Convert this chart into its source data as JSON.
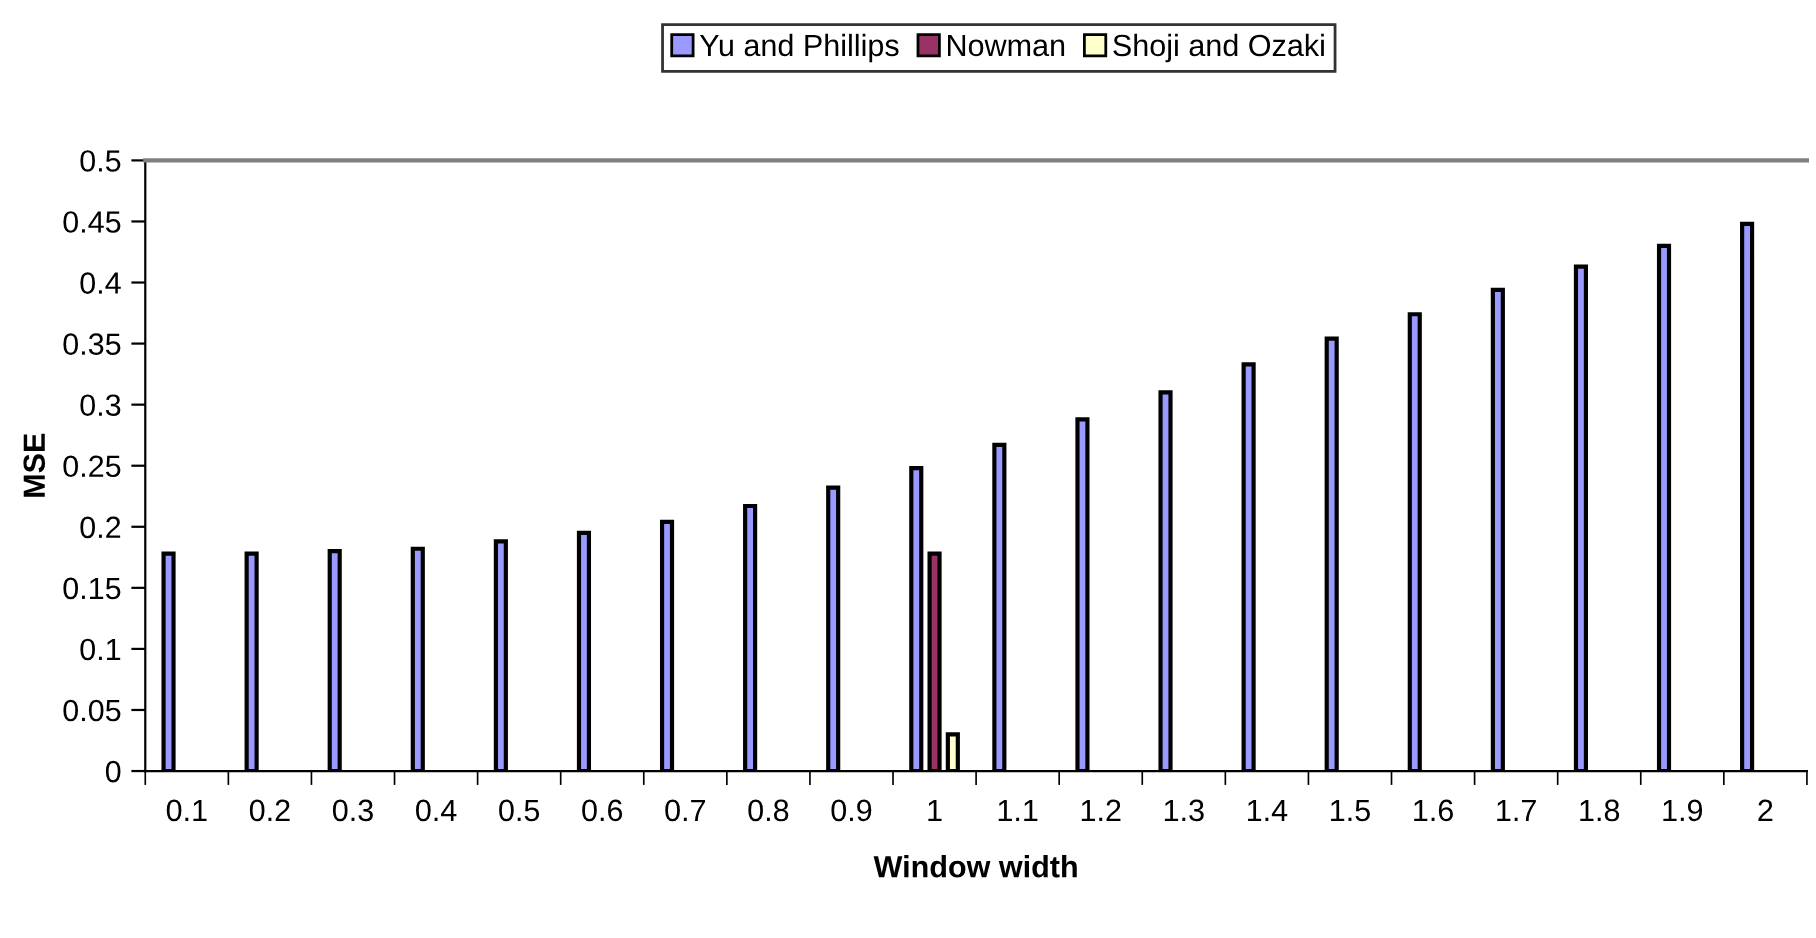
{
  "chart_data": {
    "type": "bar",
    "xlabel": "Window width",
    "ylabel": "MSE",
    "categories": [
      "0.1",
      "0.2",
      "0.3",
      "0.4",
      "0.5",
      "0.6",
      "0.7",
      "0.8",
      "0.9",
      "1",
      "1.1",
      "1.2",
      "1.3",
      "1.4",
      "1.5",
      "1.6",
      "1.7",
      "1.8",
      "1.9",
      "2"
    ],
    "series": [
      {
        "name": "Yu and Phillips",
        "color": "#9999ff",
        "values": [
          0.178,
          0.178,
          0.18,
          0.182,
          0.188,
          0.195,
          0.204,
          0.217,
          0.232,
          0.248,
          0.267,
          0.288,
          0.31,
          0.333,
          0.354,
          0.374,
          0.394,
          0.413,
          0.43,
          0.448
        ]
      },
      {
        "name": "Nowman",
        "color": "#993366",
        "values": [
          null,
          null,
          null,
          null,
          null,
          null,
          null,
          null,
          null,
          0.178,
          null,
          null,
          null,
          null,
          null,
          null,
          null,
          null,
          null,
          null
        ]
      },
      {
        "name": "Shoji and Ozaki",
        "color": "#ffffcc",
        "values": [
          null,
          null,
          null,
          null,
          null,
          null,
          null,
          null,
          null,
          0.03,
          null,
          null,
          null,
          null,
          null,
          null,
          null,
          null,
          null,
          null
        ]
      }
    ],
    "ylim": [
      0,
      0.5
    ],
    "yticks": [
      0,
      0.05,
      0.1,
      0.15,
      0.2,
      0.25,
      0.3,
      0.35,
      0.4,
      0.45,
      0.5
    ],
    "grid": false,
    "legend": "top"
  }
}
